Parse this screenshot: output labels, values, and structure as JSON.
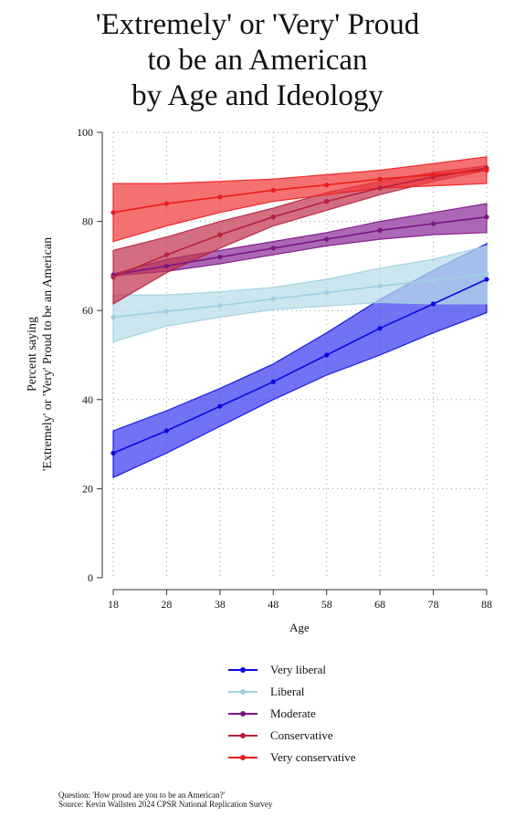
{
  "chart_data": {
    "type": "line",
    "title": [
      "'Extremely' or 'Very' Proud",
      "to be an American",
      "by Age and Ideology"
    ],
    "xlabel": "Age",
    "ylabel": [
      "Percent saying",
      "'Extremely' or 'Very' Proud to be an American"
    ],
    "x": [
      18,
      28,
      38,
      48,
      58,
      68,
      78,
      88
    ],
    "xlim": [
      18,
      88
    ],
    "ylim": [
      0,
      100
    ],
    "yticks": [
      0,
      20,
      40,
      60,
      80,
      100
    ],
    "grid": true,
    "legend_position": "bottom",
    "series": [
      {
        "name": "Very liberal",
        "color": "#0a0ae6",
        "band_color": "#3b3bf0",
        "values": [
          28,
          33,
          38.5,
          44,
          50,
          56,
          61.5,
          67
        ],
        "ci_lower": [
          22.5,
          28,
          34,
          40,
          45.5,
          50,
          55,
          59.5
        ],
        "ci_upper": [
          33,
          37.5,
          42.5,
          48,
          55,
          62.5,
          69,
          75
        ]
      },
      {
        "name": "Liberal",
        "color": "#9fd0e0",
        "band_color": "#b7dde8",
        "values": [
          58.5,
          59.8,
          61.1,
          62.6,
          64,
          65.5,
          66.8,
          68.2
        ],
        "ci_lower": [
          53,
          56.5,
          58.5,
          60.2,
          61,
          61.8,
          61.5,
          61.5
        ],
        "ci_upper": [
          63.5,
          63.5,
          64.2,
          65.2,
          67,
          69.5,
          71.5,
          74.5
        ]
      },
      {
        "name": "Moderate",
        "color": "#7b1585",
        "band_color": "#8e2e98",
        "values": [
          68,
          70,
          72,
          74,
          76,
          78,
          79.5,
          81
        ],
        "ci_lower": [
          67.8,
          68.8,
          70.5,
          72.5,
          74.5,
          76,
          77,
          77.5
        ],
        "ci_upper": [
          68.2,
          71.5,
          73.5,
          75.5,
          77.5,
          80,
          82,
          84
        ]
      },
      {
        "name": "Conservative",
        "color": "#b8203e",
        "band_color": "#c0364f",
        "values": [
          67.5,
          72.5,
          77,
          81,
          84.5,
          87.5,
          90,
          92
        ],
        "ci_lower": [
          61.5,
          68.5,
          74,
          79,
          82.5,
          86,
          89,
          91.5
        ],
        "ci_upper": [
          73.5,
          76.5,
          80,
          83,
          86.5,
          89,
          91,
          92.5
        ]
      },
      {
        "name": "Very conservative",
        "color": "#ee1c1c",
        "band_color": "#f03a3a",
        "values": [
          82,
          84,
          85.5,
          87,
          88.2,
          89.5,
          90.5,
          91.5
        ],
        "ci_lower": [
          75.5,
          79,
          82,
          84.5,
          86,
          87.5,
          88,
          88.5
        ],
        "ci_upper": [
          88.5,
          88.5,
          89,
          89.5,
          90.5,
          91.5,
          93,
          94.5
        ]
      }
    ]
  },
  "footer": {
    "question": "Question: 'How proud are you to be an American?'",
    "source": "Source: Kevin Wallsten 2024 CPSR National Replication Survey"
  }
}
